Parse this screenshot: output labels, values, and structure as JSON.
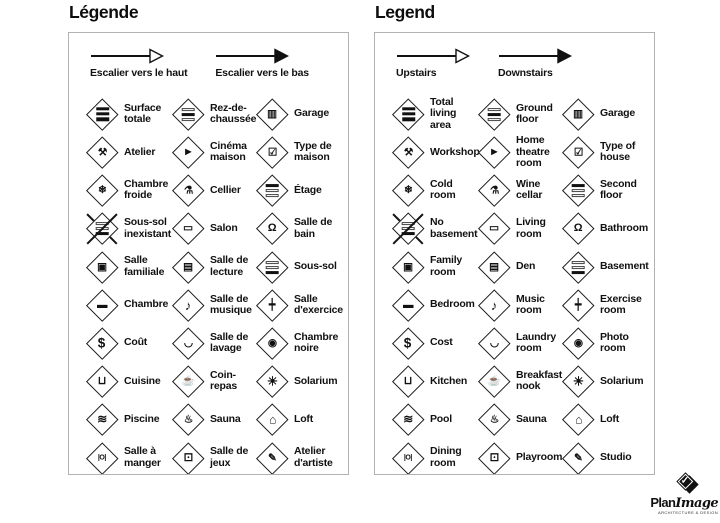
{
  "colors": {
    "text": "#111111",
    "panel_border": "#b2b2b2",
    "icon_stroke": "#1c1c1c"
  },
  "logo": {
    "name_bold": "Plan",
    "name_italic": "Image",
    "tagline": "ARCHITECTURE & DESIGN",
    "mark": "checkmark-diamond"
  },
  "panels": [
    {
      "title": "Légende",
      "arrows": [
        {
          "label": "Escalier vers le haut",
          "style": "hollow",
          "icon": "stairs-up-arrow"
        },
        {
          "label": "Escalier vers le bas",
          "style": "solid",
          "icon": "stairs-down-arrow"
        }
      ],
      "items": [
        {
          "icon": "total-living-area",
          "label": "Surface totale",
          "bars": [
            "dark",
            "dark",
            "dark"
          ]
        },
        {
          "icon": "ground-floor",
          "label": "Rez-de-chaussée",
          "bars": [
            "light",
            "dark",
            "light"
          ]
        },
        {
          "icon": "garage",
          "label": "Garage",
          "glyph": "▥"
        },
        {
          "icon": "workshop",
          "label": "Atelier",
          "glyph": "⚒"
        },
        {
          "icon": "home-theatre",
          "label": "Cinéma maison",
          "glyph": "▶"
        },
        {
          "icon": "type-of-house",
          "label": "Type de maison",
          "glyph": "☑"
        },
        {
          "icon": "cold-room",
          "label": "Chambre froide",
          "glyph": "❄"
        },
        {
          "icon": "wine-cellar",
          "label": "Cellier",
          "glyph": "⚗"
        },
        {
          "icon": "second-floor",
          "label": "Étage",
          "bars": [
            "dark",
            "light",
            "light"
          ]
        },
        {
          "icon": "no-basement",
          "label": "Sous-sol inexistant",
          "bars": [
            "light",
            "light",
            "dark"
          ],
          "crossed": true
        },
        {
          "icon": "living-room",
          "label": "Salon",
          "glyph": "▭"
        },
        {
          "icon": "bathroom",
          "label": "Salle de bain",
          "glyph": "Ω"
        },
        {
          "icon": "family-room",
          "label": "Salle familiale",
          "glyph": "▣"
        },
        {
          "icon": "den",
          "label": "Salle de lecture",
          "glyph": "▤"
        },
        {
          "icon": "basement",
          "label": "Sous-sol",
          "bars": [
            "light",
            "light",
            "dark"
          ]
        },
        {
          "icon": "bedroom",
          "label": "Chambre",
          "glyph": "▬"
        },
        {
          "icon": "music-room",
          "label": "Salle de musique",
          "glyph": "♪"
        },
        {
          "icon": "exercise-room",
          "label": "Salle d'exercice",
          "glyph": "┿"
        },
        {
          "icon": "cost",
          "label": "Coût",
          "glyph": "$"
        },
        {
          "icon": "laundry-room",
          "label": "Salle de lavage",
          "glyph": "◡"
        },
        {
          "icon": "photo-room",
          "label": "Chambre noire",
          "glyph": "◉"
        },
        {
          "icon": "kitchen",
          "label": "Cuisine",
          "glyph": "⊔"
        },
        {
          "icon": "breakfast-nook",
          "label": "Coin-repas",
          "glyph": "☕"
        },
        {
          "icon": "solarium",
          "label": "Solarium",
          "glyph": "☀"
        },
        {
          "icon": "pool",
          "label": "Piscine",
          "glyph": "≋"
        },
        {
          "icon": "sauna",
          "label": "Sauna",
          "glyph": "♨"
        },
        {
          "icon": "loft",
          "label": "Loft",
          "glyph": "⌂"
        },
        {
          "icon": "dining-room",
          "label": "Salle à manger",
          "glyph": "|O|"
        },
        {
          "icon": "playroom",
          "label": "Salle de jeux",
          "glyph": "⚀"
        },
        {
          "icon": "studio",
          "label": "Atelier d'artiste",
          "glyph": "✎"
        }
      ]
    },
    {
      "title": "Legend",
      "arrows": [
        {
          "label": "Upstairs",
          "style": "hollow",
          "icon": "stairs-up-arrow"
        },
        {
          "label": "Downstairs",
          "style": "solid",
          "icon": "stairs-down-arrow"
        }
      ],
      "items": [
        {
          "icon": "total-living-area",
          "label": "Total living area",
          "bars": [
            "dark",
            "dark",
            "dark"
          ]
        },
        {
          "icon": "ground-floor",
          "label": "Ground floor",
          "bars": [
            "light",
            "dark",
            "light"
          ]
        },
        {
          "icon": "garage",
          "label": "Garage",
          "glyph": "▥"
        },
        {
          "icon": "workshop",
          "label": "Workshop",
          "glyph": "⚒"
        },
        {
          "icon": "home-theatre",
          "label": "Home theatre room",
          "glyph": "▶"
        },
        {
          "icon": "type-of-house",
          "label": "Type of house",
          "glyph": "☑"
        },
        {
          "icon": "cold-room",
          "label": "Cold room",
          "glyph": "❄"
        },
        {
          "icon": "wine-cellar",
          "label": "Wine cellar",
          "glyph": "⚗"
        },
        {
          "icon": "second-floor",
          "label": "Second floor",
          "bars": [
            "dark",
            "light",
            "light"
          ]
        },
        {
          "icon": "no-basement",
          "label": "No basement",
          "bars": [
            "light",
            "light",
            "dark"
          ],
          "crossed": true
        },
        {
          "icon": "living-room",
          "label": "Living room",
          "glyph": "▭"
        },
        {
          "icon": "bathroom",
          "label": "Bathroom",
          "glyph": "Ω"
        },
        {
          "icon": "family-room",
          "label": "Family room",
          "glyph": "▣"
        },
        {
          "icon": "den",
          "label": "Den",
          "glyph": "▤"
        },
        {
          "icon": "basement",
          "label": "Basement",
          "bars": [
            "light",
            "light",
            "dark"
          ]
        },
        {
          "icon": "bedroom",
          "label": "Bedroom",
          "glyph": "▬"
        },
        {
          "icon": "music-room",
          "label": "Music room",
          "glyph": "♪"
        },
        {
          "icon": "exercise-room",
          "label": "Exercise room",
          "glyph": "┿"
        },
        {
          "icon": "cost",
          "label": "Cost",
          "glyph": "$"
        },
        {
          "icon": "laundry-room",
          "label": "Laundry room",
          "glyph": "◡"
        },
        {
          "icon": "photo-room",
          "label": "Photo room",
          "glyph": "◉"
        },
        {
          "icon": "kitchen",
          "label": "Kitchen",
          "glyph": "⊔"
        },
        {
          "icon": "breakfast-nook",
          "label": "Breakfast nook",
          "glyph": "☕"
        },
        {
          "icon": "solarium",
          "label": "Solarium",
          "glyph": "☀"
        },
        {
          "icon": "pool",
          "label": "Pool",
          "glyph": "≋"
        },
        {
          "icon": "sauna",
          "label": "Sauna",
          "glyph": "♨"
        },
        {
          "icon": "loft",
          "label": "Loft",
          "glyph": "⌂"
        },
        {
          "icon": "dining-room",
          "label": "Dining room",
          "glyph": "|O|"
        },
        {
          "icon": "playroom",
          "label": "Playroom",
          "glyph": "⚀"
        },
        {
          "icon": "studio",
          "label": "Studio",
          "glyph": "✎"
        }
      ]
    }
  ]
}
